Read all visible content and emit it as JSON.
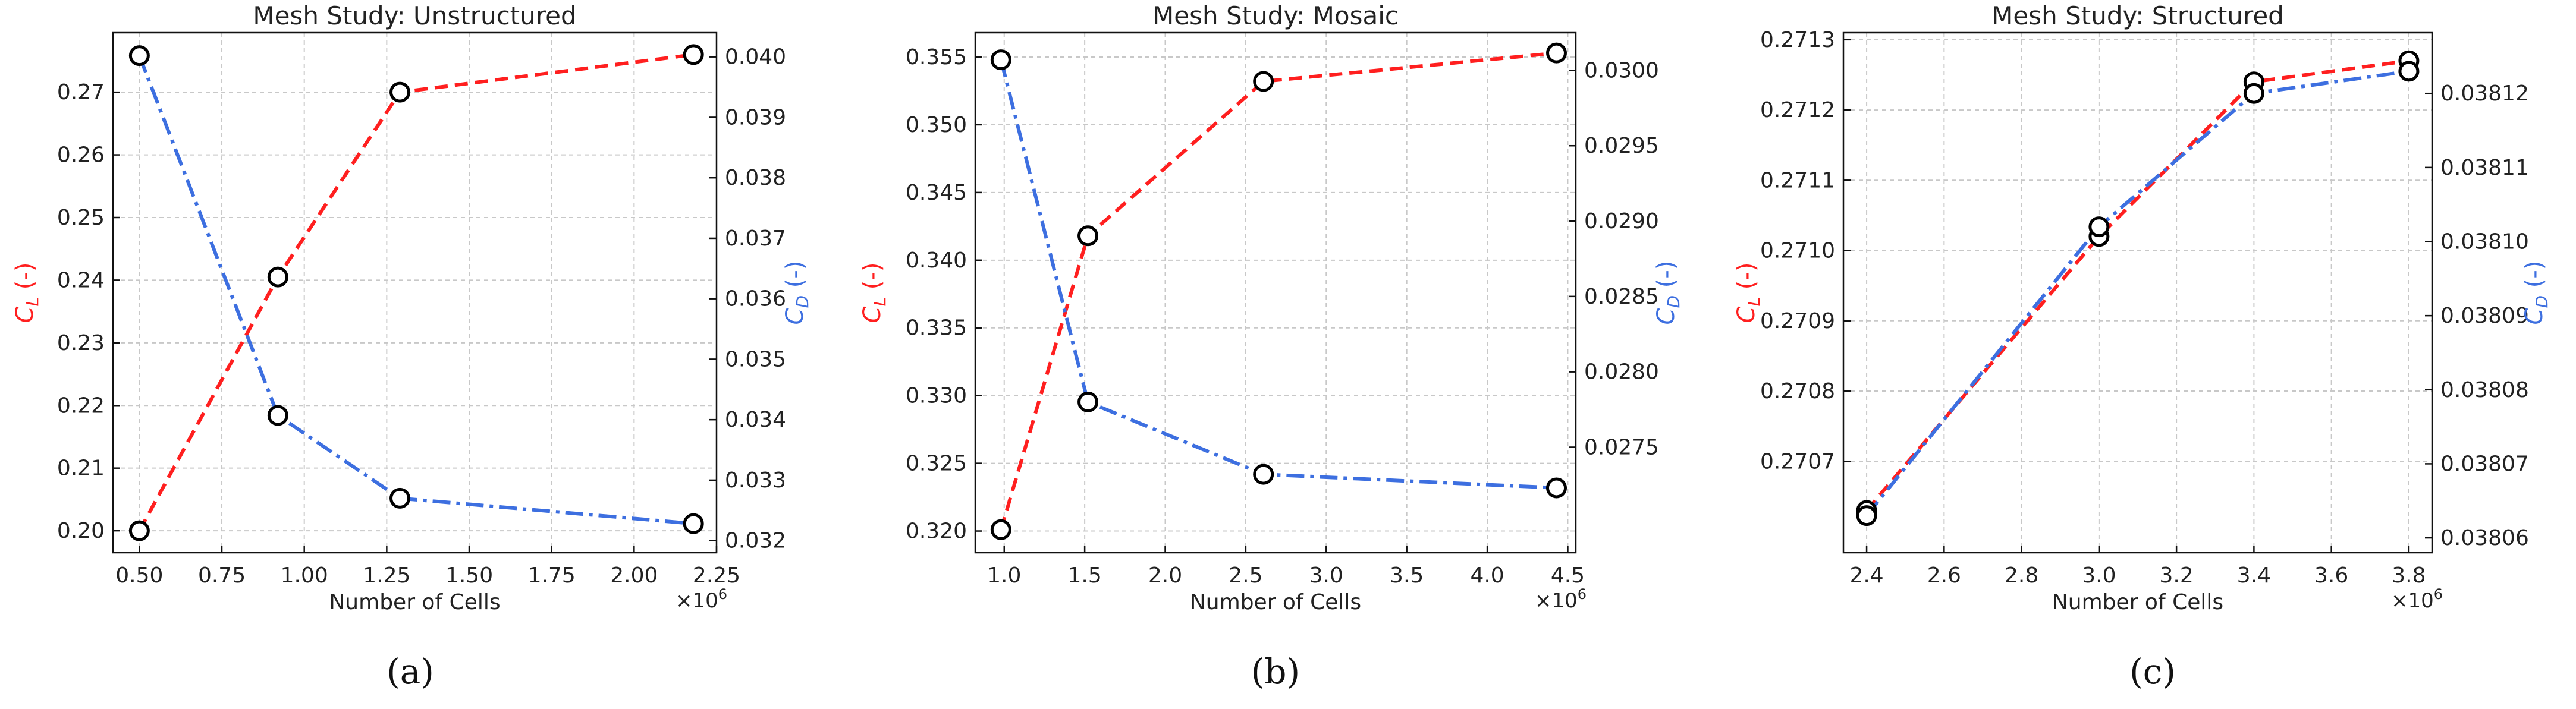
{
  "x_multiplier_label": "×10^6",
  "panels": [
    {
      "caption": "(a)",
      "cl_label": "C_L (-)",
      "cd_label": "C_D (-)",
      "colors": {
        "cl": "#ff1f1f",
        "cd": "#3d6fe0"
      }
    },
    {
      "caption": "(b)",
      "cl_label": "C_L (-)",
      "cd_label": "C_D (-)",
      "colors": {
        "cl": "#ff1f1f",
        "cd": "#3d6fe0"
      }
    },
    {
      "caption": "(c)",
      "cl_label": "C_L (-)",
      "cd_label": "C_D (-)",
      "colors": {
        "cl": "#ff1f1f",
        "cd": "#3d6fe0"
      }
    }
  ],
  "chart_data": [
    {
      "type": "line",
      "title": "Mesh Study: Unstructured",
      "xlabel": "Number of Cells",
      "x_scale_label": "×10^6",
      "ylabel_left": "C_L (-)",
      "ylabel_right": "C_D (-)",
      "xlim": [
        0.42,
        2.25
      ],
      "ylim_left": [
        0.1965,
        0.2795
      ],
      "ylim_right": [
        0.0318,
        0.0404
      ],
      "x_ticks": [
        0.5,
        0.75,
        1.0,
        1.25,
        1.5,
        1.75,
        2.0,
        2.25
      ],
      "x_tick_labels": [
        "0.50",
        "0.75",
        "1.00",
        "1.25",
        "1.50",
        "1.75",
        "2.00",
        "2.25"
      ],
      "y_left_ticks": [
        0.2,
        0.21,
        0.22,
        0.23,
        0.24,
        0.25,
        0.26,
        0.27
      ],
      "y_left_tick_labels": [
        "0.20",
        "0.21",
        "0.22",
        "0.23",
        "0.24",
        "0.25",
        "0.26",
        "0.27"
      ],
      "y_right_ticks": [
        0.032,
        0.033,
        0.034,
        0.035,
        0.036,
        0.037,
        0.038,
        0.039,
        0.04
      ],
      "y_right_tick_labels": [
        "0.032",
        "0.033",
        "0.034",
        "0.035",
        "0.036",
        "0.037",
        "0.038",
        "0.039",
        "0.040"
      ],
      "grid": true,
      "series": [
        {
          "name": "C_L",
          "axis": "left",
          "linestyle": "dashed",
          "color": "#ff1f1f",
          "x": [
            0.5,
            0.92,
            1.29,
            2.18
          ],
          "values": [
            0.2,
            0.2405,
            0.27,
            0.276
          ]
        },
        {
          "name": "C_D",
          "axis": "right",
          "linestyle": "dashdot",
          "color": "#3d6fe0",
          "x": [
            0.5,
            0.92,
            1.29,
            2.18
          ],
          "values": [
            0.04002,
            0.03407,
            0.0327,
            0.03228
          ]
        }
      ]
    },
    {
      "type": "line",
      "title": "Mesh Study: Mosaic",
      "xlabel": "Number of Cells",
      "x_scale_label": "×10^6",
      "ylabel_left": "C_L (-)",
      "ylabel_right": "C_D (-)",
      "xlim": [
        0.82,
        4.55
      ],
      "ylim_left": [
        0.3184,
        0.3568
      ],
      "ylim_right": [
        0.0268,
        0.03025
      ],
      "x_ticks": [
        1.0,
        1.5,
        2.0,
        2.5,
        3.0,
        3.5,
        4.0,
        4.5
      ],
      "x_tick_labels": [
        "1.0",
        "1.5",
        "2.0",
        "2.5",
        "3.0",
        "3.5",
        "4.0",
        "4.5"
      ],
      "y_left_ticks": [
        0.32,
        0.325,
        0.33,
        0.335,
        0.34,
        0.345,
        0.35,
        0.355
      ],
      "y_left_tick_labels": [
        "0.320",
        "0.325",
        "0.330",
        "0.335",
        "0.340",
        "0.345",
        "0.350",
        "0.355"
      ],
      "y_right_ticks": [
        0.0275,
        0.028,
        0.0285,
        0.029,
        0.0295,
        0.03
      ],
      "y_right_tick_labels": [
        "0.0275",
        "0.0280",
        "0.0285",
        "0.0290",
        "0.0295",
        "0.0300"
      ],
      "grid": true,
      "series": [
        {
          "name": "C_L",
          "axis": "left",
          "linestyle": "dashed",
          "color": "#ff1f1f",
          "x": [
            0.98,
            1.52,
            2.61,
            4.43
          ],
          "values": [
            0.3201,
            0.3418,
            0.3532,
            0.3553
          ]
        },
        {
          "name": "C_D",
          "axis": "right",
          "linestyle": "dashdot",
          "color": "#3d6fe0",
          "x": [
            0.98,
            1.52,
            2.61,
            4.43
          ],
          "values": [
            0.03007,
            0.0278,
            0.02732,
            0.02723
          ]
        }
      ]
    },
    {
      "type": "line",
      "title": "Mesh Study: Structured",
      "xlabel": "Number of Cells",
      "x_scale_label": "×10^6",
      "ylabel_left": "C_L (-)",
      "ylabel_right": "C_D (-)",
      "xlim": [
        2.34,
        3.86
      ],
      "ylim_left": [
        0.27057,
        0.27131
      ],
      "ylim_right": [
        0.038058,
        0.0381282
      ],
      "x_ticks": [
        2.4,
        2.6,
        2.8,
        3.0,
        3.2,
        3.4,
        3.6,
        3.8
      ],
      "x_tick_labels": [
        "2.4",
        "2.6",
        "2.8",
        "3.0",
        "3.2",
        "3.4",
        "3.6",
        "3.8"
      ],
      "y_left_ticks": [
        0.2707,
        0.2708,
        0.2709,
        0.271,
        0.2711,
        0.2712,
        0.2713
      ],
      "y_left_tick_labels": [
        "0.2707",
        "0.2708",
        "0.2709",
        "0.2710",
        "0.2711",
        "0.2712",
        "0.2713"
      ],
      "y_right_ticks": [
        0.03806,
        0.03807,
        0.03808,
        0.03809,
        0.0381,
        0.03811,
        0.03812
      ],
      "y_right_tick_labels": [
        "0.03806",
        "0.03807",
        "0.03808",
        "0.03809",
        "0.03810",
        "0.03811",
        "0.03812"
      ],
      "grid": true,
      "series": [
        {
          "name": "C_L",
          "axis": "left",
          "linestyle": "dashed",
          "color": "#ff1f1f",
          "x": [
            2.4,
            3.0,
            3.4,
            3.8
          ],
          "values": [
            0.27063,
            0.27102,
            0.27124,
            0.27127
          ]
        },
        {
          "name": "C_D",
          "axis": "right",
          "linestyle": "dashdot",
          "color": "#3d6fe0",
          "x": [
            2.4,
            3.0,
            3.4,
            3.8
          ],
          "values": [
            0.038063,
            0.038102,
            0.03812,
            0.038123
          ]
        }
      ]
    }
  ]
}
